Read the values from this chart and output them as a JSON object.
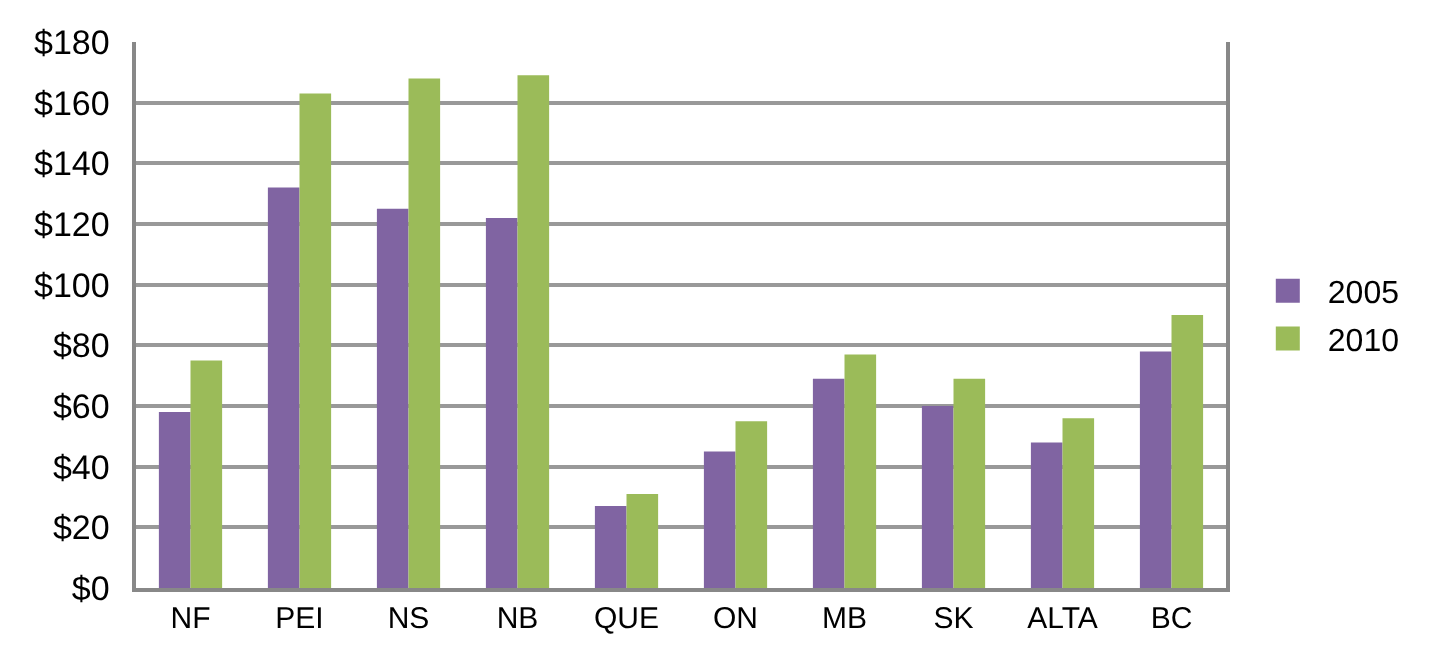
{
  "chart_data": {
    "type": "bar",
    "categories": [
      "NF",
      "PEI",
      "NS",
      "NB",
      "QUE",
      "ON",
      "MB",
      "SK",
      "ALTA",
      "BC"
    ],
    "series": [
      {
        "name": "2005",
        "color": "#8064a2",
        "values": [
          58,
          132,
          125,
          122,
          27,
          45,
          69,
          60,
          48,
          78
        ]
      },
      {
        "name": "2010",
        "color": "#9bbb59",
        "values": [
          75,
          163,
          168,
          169,
          31,
          55,
          77,
          69,
          56,
          90
        ]
      }
    ],
    "ylim": [
      0,
      180
    ],
    "yticks": [
      {
        "value": 0,
        "label": "$0"
      },
      {
        "value": 20,
        "label": "$20"
      },
      {
        "value": 40,
        "label": "$40"
      },
      {
        "value": 60,
        "label": "$60"
      },
      {
        "value": 80,
        "label": "$80"
      },
      {
        "value": 100,
        "label": "$100"
      },
      {
        "value": 120,
        "label": "$120"
      },
      {
        "value": 140,
        "label": "$140"
      },
      {
        "value": 160,
        "label": "$160"
      },
      {
        "value": 180,
        "label": "$180"
      }
    ],
    "grid": "y",
    "legend": "right"
  }
}
